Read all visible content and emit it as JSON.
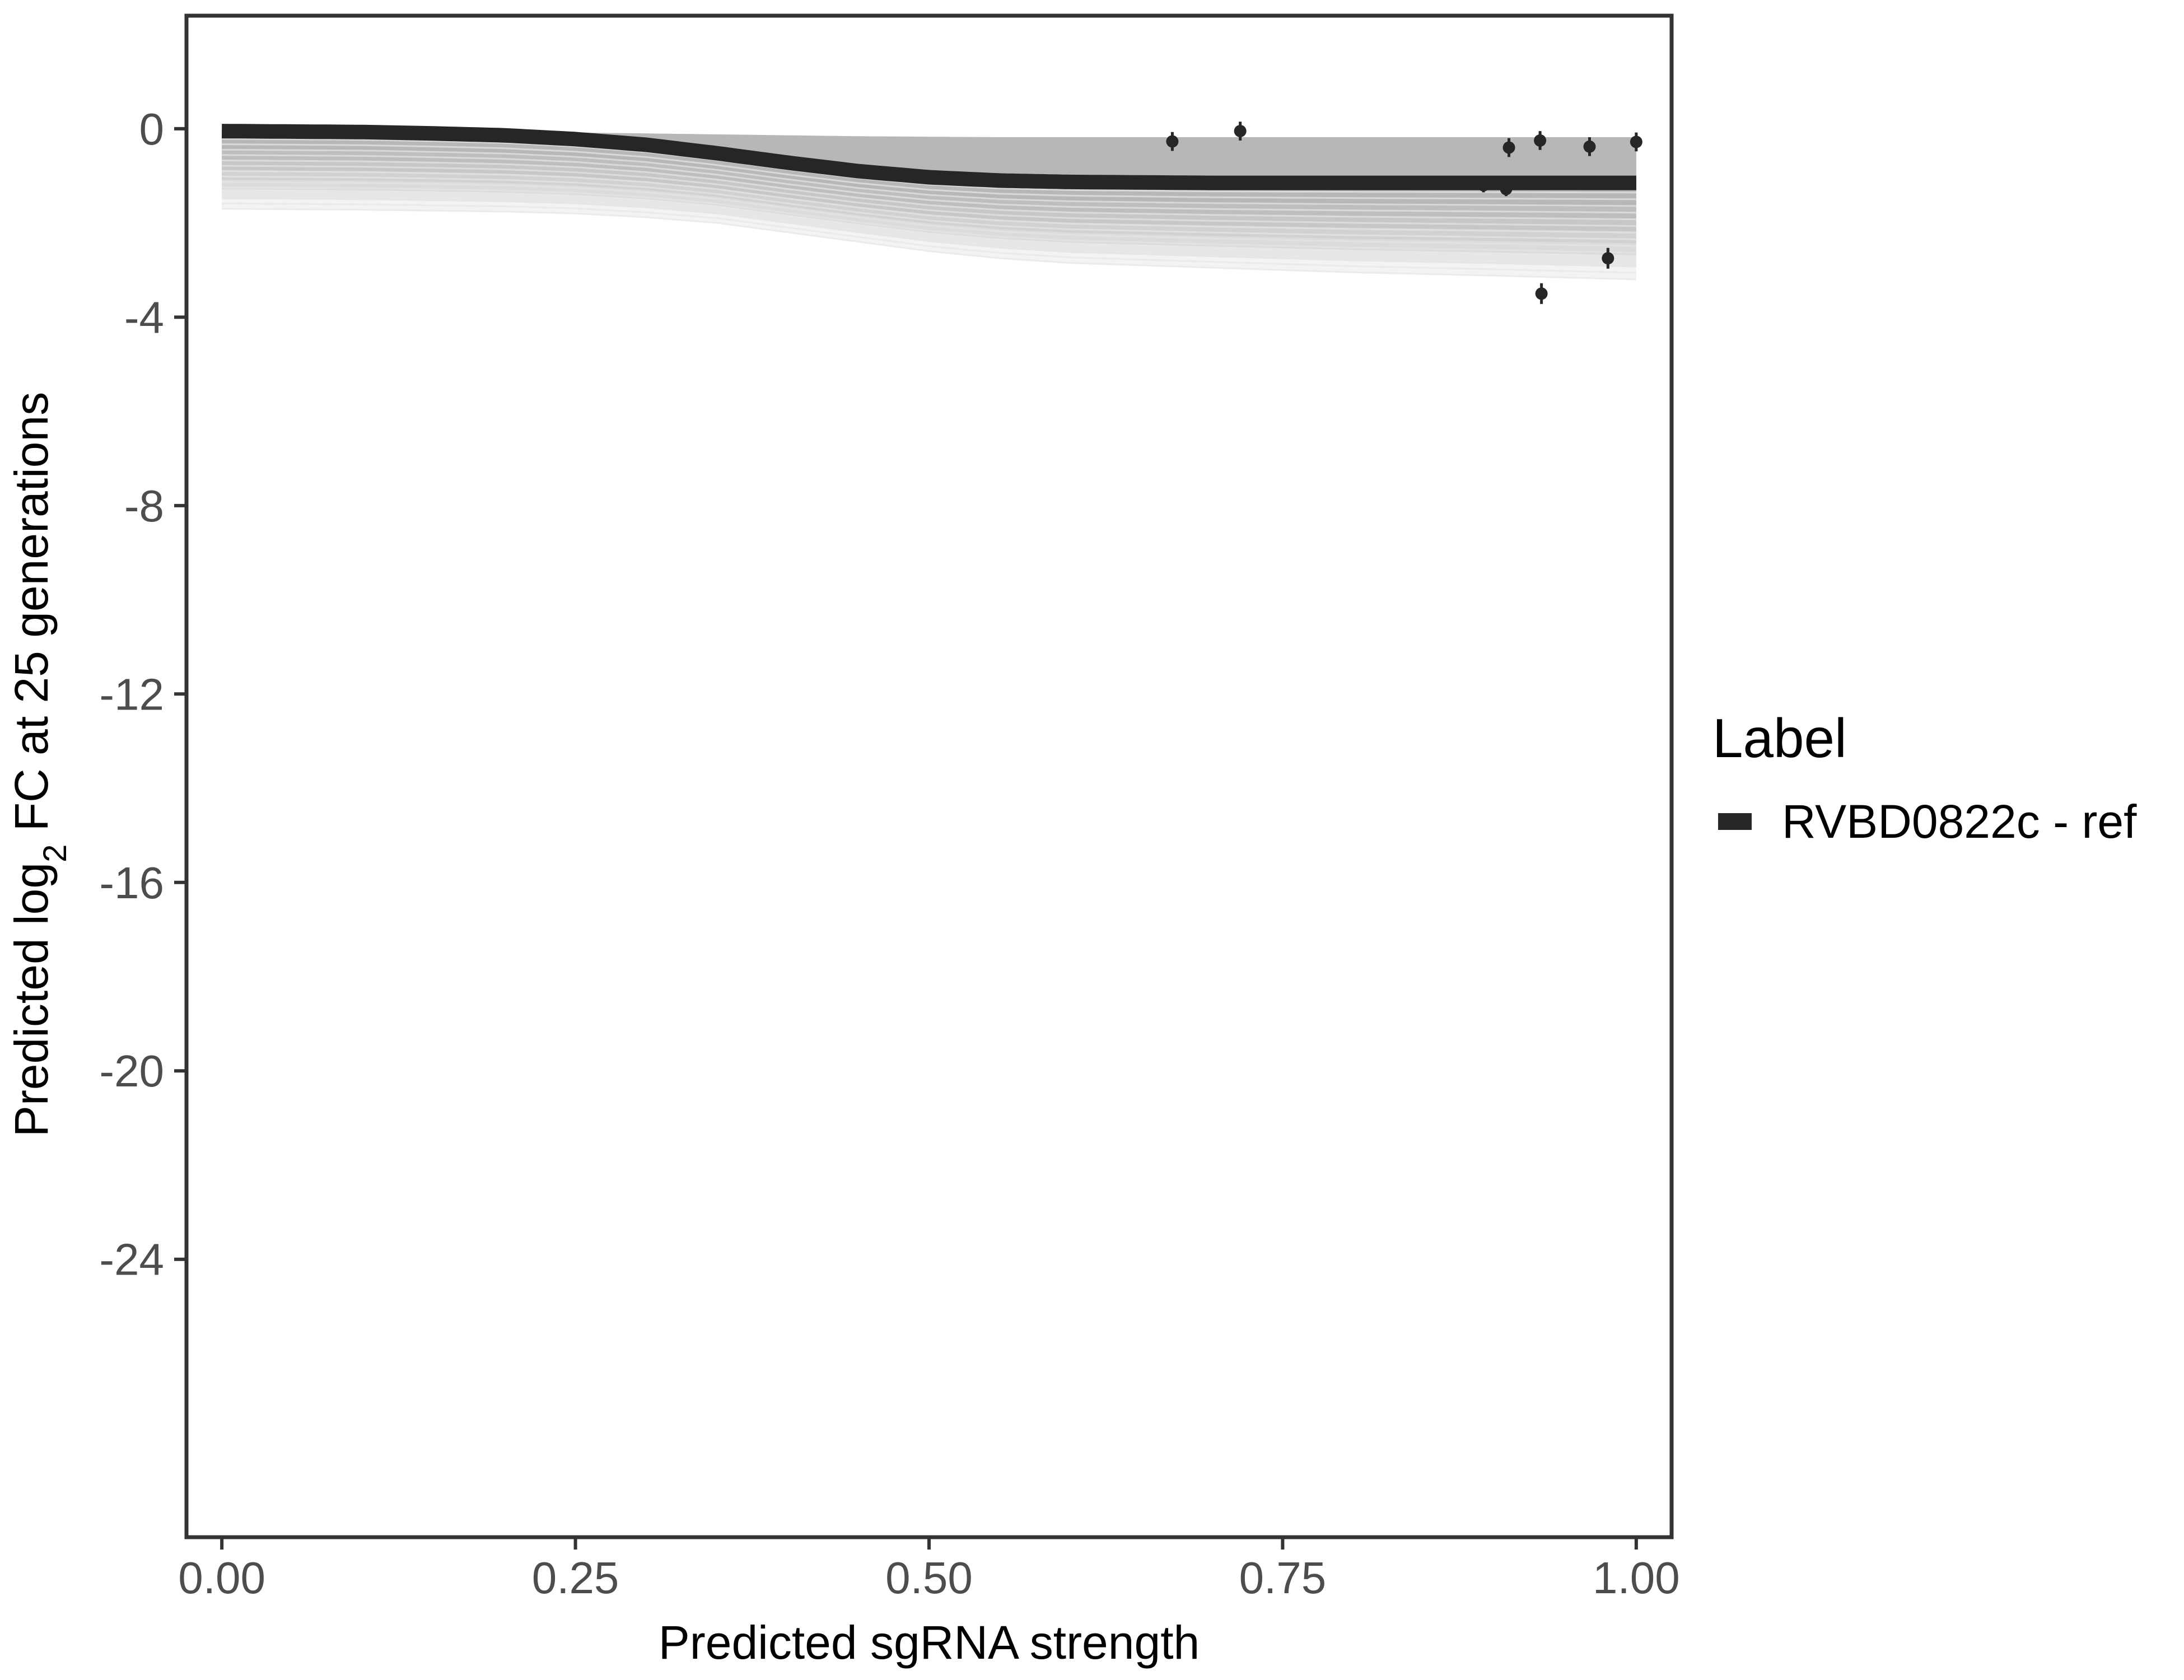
{
  "chart_data": {
    "type": "line",
    "xlabel": "Predicted sgRNA strength",
    "ylabel_prefix": "Predicted  log",
    "ylabel_subscript": "2",
    "ylabel_suffix": " FC at 25 generations",
    "xlim": [
      -0.025,
      1.025
    ],
    "ylim": [
      -29.9,
      2.4
    ],
    "x_ticks": [
      0,
      0.25,
      0.5,
      0.75,
      1
    ],
    "x_tick_labels": [
      "0.00",
      "0.25",
      "0.50",
      "0.75",
      "1.00"
    ],
    "y_ticks": [
      0,
      -4,
      -8,
      -12,
      -16,
      -20,
      -24
    ],
    "y_tick_labels": [
      "0",
      "-4",
      "-8",
      "-12",
      "-16",
      "-20",
      "-24"
    ],
    "grid": false,
    "legend": {
      "title": "Label",
      "position": "right",
      "entries": [
        {
          "label": "RVBD0822c - ref",
          "color": "#262626"
        }
      ]
    },
    "fit_line": {
      "name": "RVBD0822c - ref",
      "color": "#262626",
      "x": [
        0,
        0.05,
        0.1,
        0.15,
        0.2,
        0.25,
        0.3,
        0.35,
        0.4,
        0.45,
        0.5,
        0.55,
        0.6,
        0.65,
        0.7,
        0.75,
        0.8,
        0.85,
        0.9,
        0.95,
        1
      ],
      "y": [
        -0.05,
        -0.06,
        -0.07,
        -0.1,
        -0.14,
        -0.22,
        -0.34,
        -0.52,
        -0.72,
        -0.9,
        -1.03,
        -1.1,
        -1.13,
        -1.14,
        -1.15,
        -1.15,
        -1.15,
        -1.15,
        -1.15,
        -1.15,
        -1.15
      ]
    },
    "uncertainty_band": {
      "color": "#9e9e9e",
      "x": [
        0,
        0.1,
        0.2,
        0.25,
        0.3,
        0.35,
        0.4,
        0.45,
        0.5,
        0.55,
        0.6,
        0.7,
        0.8,
        0.9,
        1
      ],
      "upper": [
        -0.03,
        -0.04,
        -0.06,
        -0.08,
        -0.1,
        -0.12,
        -0.14,
        -0.16,
        -0.17,
        -0.18,
        -0.18,
        -0.18,
        -0.18,
        -0.18,
        -0.18
      ],
      "lower": [
        -1.7,
        -1.72,
        -1.76,
        -1.8,
        -1.88,
        -2.0,
        -2.2,
        -2.4,
        -2.6,
        -2.75,
        -2.85,
        -2.95,
        -3.05,
        -3.12,
        -3.2
      ]
    },
    "points": [
      {
        "x": 0.672,
        "y": -0.27,
        "err": 0.2
      },
      {
        "x": 0.72,
        "y": -0.05,
        "err": 0.2
      },
      {
        "x": 0.892,
        "y": -1.2,
        "err": 0.15
      },
      {
        "x": 0.908,
        "y": -1.28,
        "err": 0.15
      },
      {
        "x": 0.91,
        "y": -0.4,
        "err": 0.2
      },
      {
        "x": 0.932,
        "y": -0.25,
        "err": 0.2
      },
      {
        "x": 0.933,
        "y": -3.5,
        "err": 0.22
      },
      {
        "x": 0.967,
        "y": -0.38,
        "err": 0.2
      },
      {
        "x": 0.98,
        "y": -2.75,
        "err": 0.22
      },
      {
        "x": 1.0,
        "y": -0.28,
        "err": 0.2
      }
    ]
  }
}
